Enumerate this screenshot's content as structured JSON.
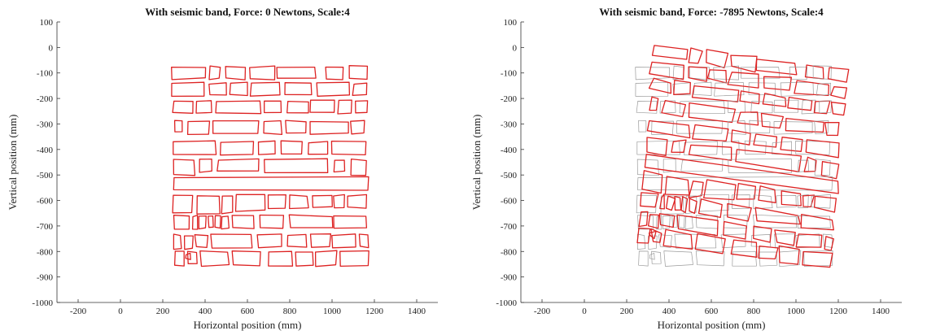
{
  "chart_data": [
    {
      "type": "scatter",
      "title": "With seismic band, Force: 0 Newtons, Scale:4",
      "xlabel": "Horizontal position (mm)",
      "ylabel": "Vertical position (mm)",
      "xlim": [
        -300,
        1500
      ],
      "ylim": [
        -1000,
        100
      ],
      "xticks": [
        -200,
        0,
        200,
        400,
        600,
        800,
        1000,
        1200,
        1400
      ],
      "yticks": [
        100,
        0,
        -100,
        -200,
        -300,
        -400,
        -500,
        -600,
        -700,
        -800,
        -900,
        -1000
      ],
      "grid": false,
      "displacement": {
        "rot": 0,
        "sx": 0,
        "sy": 0
      },
      "show_original": false,
      "series": [
        {
          "name": "",
          "color": "#dd2222",
          "blocks": [
            [
              245,
              -75,
              160,
              48
            ],
            [
              420,
              -75,
              50,
              48
            ],
            [
              500,
              -75,
              90,
              48
            ],
            [
              610,
              -75,
              120,
              48
            ],
            [
              740,
              -75,
              180,
              48
            ],
            [
              970,
              -75,
              80,
              48
            ],
            [
              1080,
              -75,
              85,
              48
            ],
            [
              245,
              -140,
              150,
              48
            ],
            [
              420,
              -140,
              80,
              48
            ],
            [
              520,
              -140,
              80,
              48
            ],
            [
              615,
              -140,
              140,
              48
            ],
            [
              775,
              -140,
              125,
              48
            ],
            [
              930,
              -140,
              150,
              48
            ],
            [
              1100,
              -140,
              65,
              48
            ],
            [
              250,
              -210,
              90,
              48
            ],
            [
              360,
              -210,
              70,
              48
            ],
            [
              450,
              -210,
              210,
              48
            ],
            [
              680,
              -210,
              80,
              48
            ],
            [
              790,
              -210,
              95,
              48
            ],
            [
              900,
              -210,
              110,
              48
            ],
            [
              1030,
              -210,
              60,
              48
            ],
            [
              1110,
              -210,
              55,
              48
            ],
            [
              255,
              -290,
              40,
              38
            ],
            [
              320,
              -290,
              100,
              48
            ],
            [
              440,
              -290,
              210,
              48
            ],
            [
              680,
              -290,
              80,
              48
            ],
            [
              780,
              -290,
              95,
              48
            ],
            [
              900,
              -290,
              180,
              48
            ],
            [
              1090,
              -290,
              60,
              48
            ],
            [
              250,
              -370,
              200,
              48
            ],
            [
              470,
              -370,
              160,
              48
            ],
            [
              650,
              -370,
              80,
              48
            ],
            [
              760,
              -370,
              100,
              48
            ],
            [
              890,
              -370,
              90,
              48
            ],
            [
              1000,
              -370,
              160,
              48
            ],
            [
              250,
              -440,
              100,
              60
            ],
            [
              370,
              -440,
              60,
              48
            ],
            [
              460,
              -440,
              190,
              48
            ],
            [
              680,
              -440,
              300,
              48
            ],
            [
              1010,
              -440,
              50,
              48
            ],
            [
              1090,
              -440,
              70,
              60
            ],
            [
              250,
              -510,
              920,
              48
            ],
            [
              250,
              -580,
              90,
              70
            ],
            [
              365,
              -580,
              105,
              70
            ],
            [
              480,
              -580,
              50,
              70
            ],
            [
              545,
              -580,
              135,
              60
            ],
            [
              700,
              -580,
              80,
              48
            ],
            [
              800,
              -580,
              85,
              48
            ],
            [
              910,
              -580,
              90,
              48
            ],
            [
              1010,
              -580,
              45,
              48
            ],
            [
              1075,
              -580,
              85,
              48
            ],
            [
              255,
              -660,
              70,
              55
            ],
            [
              340,
              -660,
              25,
              55
            ],
            [
              370,
              -660,
              35,
              48
            ],
            [
              415,
              -660,
              25,
              48
            ],
            [
              445,
              -660,
              25,
              48
            ],
            [
              480,
              -660,
              30,
              48
            ],
            [
              530,
              -660,
              100,
              48
            ],
            [
              660,
              -660,
              110,
              48
            ],
            [
              800,
              -660,
              200,
              48
            ],
            [
              1010,
              -660,
              150,
              48
            ],
            [
              255,
              -735,
              30,
              55
            ],
            [
              300,
              -735,
              40,
              55
            ],
            [
              355,
              -735,
              55,
              48
            ],
            [
              430,
              -735,
              190,
              48
            ],
            [
              650,
              -735,
              110,
              48
            ],
            [
              790,
              -735,
              90,
              48
            ],
            [
              900,
              -735,
              90,
              48
            ],
            [
              1000,
              -735,
              110,
              48
            ],
            [
              1130,
              -735,
              40,
              48
            ],
            [
              260,
              -800,
              40,
              55
            ],
            [
              310,
              -810,
              20,
              20
            ],
            [
              320,
              -800,
              40,
              48
            ],
            [
              380,
              -800,
              130,
              55
            ],
            [
              530,
              -800,
              130,
              55
            ],
            [
              700,
              -800,
              110,
              55
            ],
            [
              830,
              -800,
              80,
              55
            ],
            [
              920,
              -800,
              100,
              55
            ],
            [
              1040,
              -800,
              130,
              55
            ]
          ]
        }
      ]
    },
    {
      "type": "scatter",
      "title": "With seismic band, Force: -7895 Newtons, Scale:4",
      "xlabel": "Horizontal position (mm)",
      "ylabel": "Vertical position (mm)",
      "xlim": [
        -300,
        1500
      ],
      "ylim": [
        -1000,
        100
      ],
      "xticks": [
        -200,
        0,
        200,
        400,
        600,
        800,
        1000,
        1200,
        1400
      ],
      "yticks": [
        100,
        0,
        -100,
        -200,
        -300,
        -400,
        -500,
        -600,
        -700,
        -800,
        -900,
        -1000
      ],
      "grid": false,
      "displacement": {
        "rot": -0.11,
        "sx": 40,
        "sy": 40
      },
      "show_original": true,
      "series": [
        {
          "name": "",
          "color": "#dd2222",
          "blocks": [
            [
              245,
              -75,
              160,
              48
            ],
            [
              420,
              -75,
              50,
              48
            ],
            [
              500,
              -75,
              90,
              48
            ],
            [
              610,
              -75,
              120,
              48
            ],
            [
              740,
              -75,
              180,
              48
            ],
            [
              970,
              -75,
              80,
              48
            ],
            [
              1080,
              -75,
              85,
              48
            ],
            [
              245,
              -140,
              150,
              48
            ],
            [
              420,
              -140,
              80,
              48
            ],
            [
              520,
              -140,
              80,
              48
            ],
            [
              615,
              -140,
              140,
              48
            ],
            [
              775,
              -140,
              125,
              48
            ],
            [
              930,
              -140,
              150,
              48
            ],
            [
              1100,
              -140,
              65,
              48
            ],
            [
              250,
              -210,
              90,
              48
            ],
            [
              360,
              -210,
              70,
              48
            ],
            [
              450,
              -210,
              210,
              48
            ],
            [
              680,
              -210,
              80,
              48
            ],
            [
              790,
              -210,
              95,
              48
            ],
            [
              900,
              -210,
              110,
              48
            ],
            [
              1030,
              -210,
              60,
              48
            ],
            [
              1110,
              -210,
              55,
              48
            ],
            [
              255,
              -290,
              40,
              38
            ],
            [
              320,
              -290,
              100,
              48
            ],
            [
              440,
              -290,
              210,
              48
            ],
            [
              680,
              -290,
              80,
              48
            ],
            [
              780,
              -290,
              95,
              48
            ],
            [
              900,
              -290,
              180,
              48
            ],
            [
              1090,
              -290,
              60,
              48
            ],
            [
              250,
              -370,
              200,
              48
            ],
            [
              470,
              -370,
              160,
              48
            ],
            [
              650,
              -370,
              80,
              48
            ],
            [
              760,
              -370,
              100,
              48
            ],
            [
              890,
              -370,
              90,
              48
            ],
            [
              1000,
              -370,
              160,
              48
            ],
            [
              250,
              -440,
              100,
              60
            ],
            [
              370,
              -440,
              60,
              48
            ],
            [
              460,
              -440,
              190,
              48
            ],
            [
              680,
              -440,
              300,
              48
            ],
            [
              1010,
              -440,
              50,
              48
            ],
            [
              1090,
              -440,
              70,
              60
            ],
            [
              250,
              -510,
              920,
              48
            ],
            [
              250,
              -580,
              90,
              70
            ],
            [
              365,
              -580,
              105,
              70
            ],
            [
              480,
              -580,
              50,
              70
            ],
            [
              545,
              -580,
              135,
              60
            ],
            [
              700,
              -580,
              80,
              48
            ],
            [
              800,
              -580,
              85,
              48
            ],
            [
              910,
              -580,
              90,
              48
            ],
            [
              1010,
              -580,
              45,
              48
            ],
            [
              1075,
              -580,
              85,
              48
            ],
            [
              255,
              -660,
              70,
              55
            ],
            [
              340,
              -660,
              25,
              55
            ],
            [
              370,
              -660,
              35,
              48
            ],
            [
              415,
              -660,
              25,
              48
            ],
            [
              445,
              -660,
              25,
              48
            ],
            [
              480,
              -660,
              30,
              48
            ],
            [
              530,
              -660,
              100,
              48
            ],
            [
              660,
              -660,
              110,
              48
            ],
            [
              800,
              -660,
              200,
              48
            ],
            [
              1010,
              -660,
              150,
              48
            ],
            [
              255,
              -735,
              30,
              55
            ],
            [
              300,
              -735,
              40,
              55
            ],
            [
              355,
              -735,
              55,
              48
            ],
            [
              430,
              -735,
              190,
              48
            ],
            [
              650,
              -735,
              110,
              48
            ],
            [
              790,
              -735,
              90,
              48
            ],
            [
              900,
              -735,
              90,
              48
            ],
            [
              1000,
              -735,
              110,
              48
            ],
            [
              1130,
              -735,
              40,
              48
            ],
            [
              260,
              -800,
              40,
              55
            ],
            [
              310,
              -810,
              20,
              20
            ],
            [
              320,
              -800,
              40,
              48
            ],
            [
              380,
              -800,
              130,
              55
            ],
            [
              530,
              -800,
              130,
              55
            ],
            [
              700,
              -800,
              110,
              55
            ],
            [
              830,
              -800,
              80,
              55
            ],
            [
              920,
              -800,
              100,
              55
            ],
            [
              1040,
              -800,
              130,
              55
            ]
          ]
        }
      ]
    }
  ]
}
